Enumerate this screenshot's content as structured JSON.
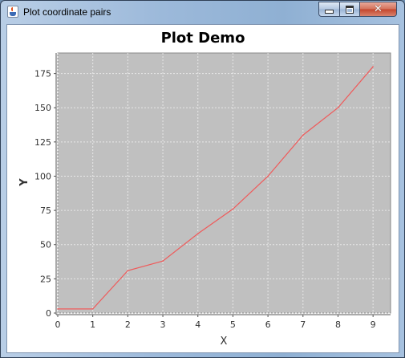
{
  "window": {
    "title": "Plot coordinate pairs",
    "app_icon": "java-cup-icon",
    "controls": {
      "minimize_icon": "minimize-icon",
      "maximize_icon": "maximize-icon",
      "close_icon": "close-icon"
    }
  },
  "chart_data": {
    "type": "line",
    "title": "Plot Demo",
    "xlabel": "X",
    "ylabel": "Y",
    "x": [
      0,
      1,
      2,
      3,
      4,
      5,
      6,
      7,
      8,
      9
    ],
    "series": [
      {
        "name": "",
        "values": [
          3,
          3,
          31,
          38,
          58,
          76,
          100,
          130,
          150,
          180
        ],
        "color": "#ef5a5a"
      }
    ],
    "xlim": [
      0,
      9.5
    ],
    "ylim": [
      0,
      190
    ],
    "xticks": [
      "0",
      "1",
      "2",
      "3",
      "4",
      "5",
      "6",
      "7",
      "8",
      "9"
    ],
    "yticks": [
      "0",
      "25",
      "50",
      "75",
      "100",
      "125",
      "150",
      "175"
    ],
    "grid": true,
    "plot_background": "#c0c0c0"
  }
}
